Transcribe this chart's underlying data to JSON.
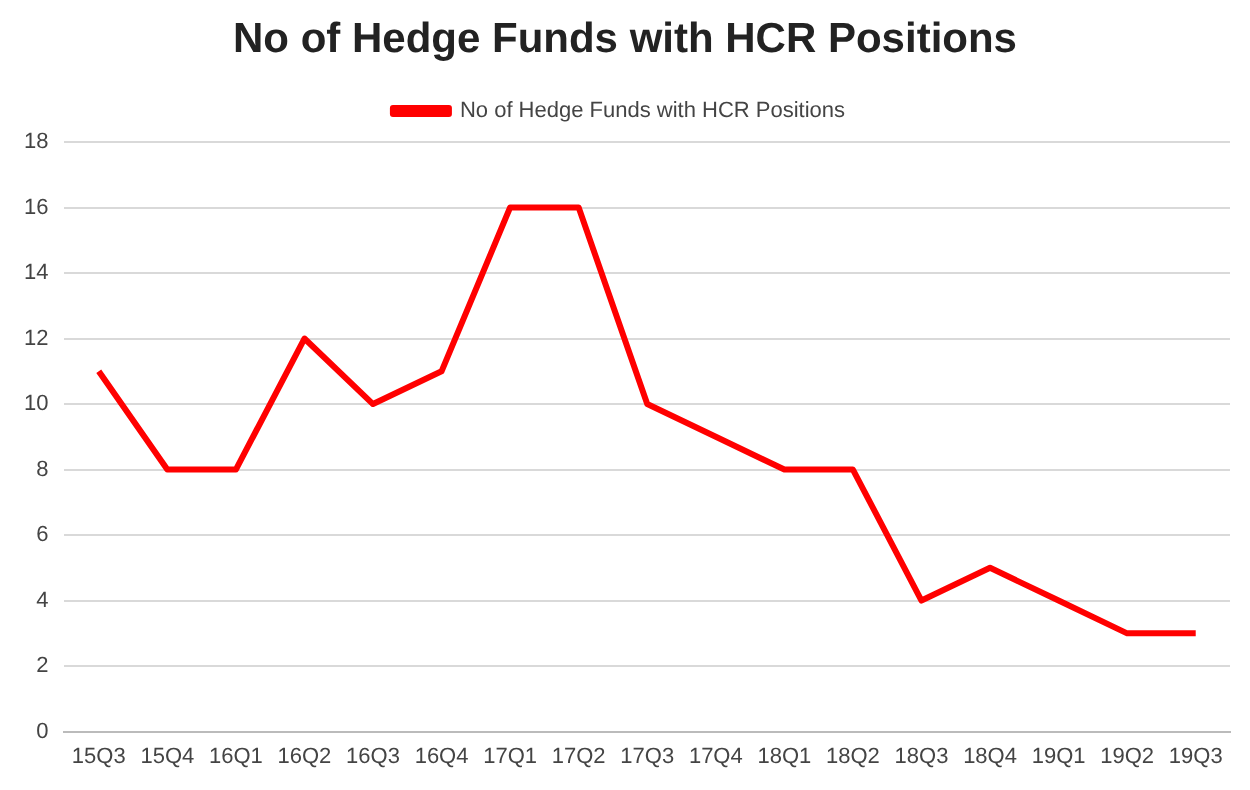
{
  "chart_data": {
    "type": "line",
    "title": "No of Hedge Funds with HCR Positions",
    "categories": [
      "15Q3",
      "15Q4",
      "16Q1",
      "16Q2",
      "16Q3",
      "16Q4",
      "17Q1",
      "17Q2",
      "17Q3",
      "17Q4",
      "18Q1",
      "18Q2",
      "18Q3",
      "18Q4",
      "19Q1",
      "19Q2",
      "19Q3"
    ],
    "series": [
      {
        "name": "No of Hedge Funds with HCR Positions",
        "color": "#ff0000",
        "values": [
          11,
          8,
          8,
          12,
          10,
          11,
          16,
          16,
          10,
          9,
          8,
          8,
          4,
          5,
          4,
          3,
          3
        ]
      }
    ],
    "ylim": [
      0,
      18
    ],
    "yticks": [
      0,
      2,
      4,
      6,
      8,
      10,
      12,
      14,
      16,
      18
    ],
    "grid": "y",
    "legend": "top",
    "marker": "none",
    "line_style": "solid"
  }
}
